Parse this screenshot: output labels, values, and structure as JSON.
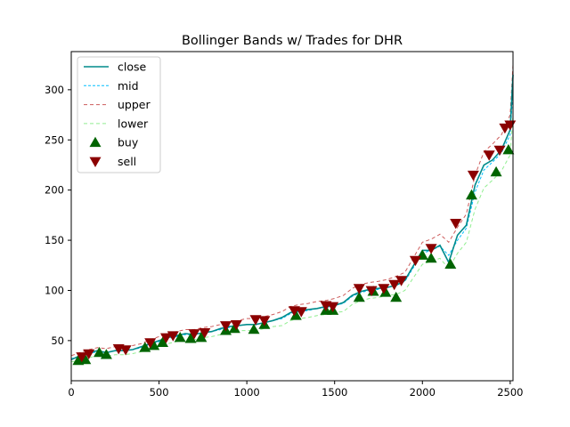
{
  "chart_data": {
    "type": "line",
    "title": "Bollinger Bands w/ Trades for DHR",
    "xlabel": "",
    "ylabel": "",
    "xlim": [
      0,
      2516
    ],
    "ylim": [
      10,
      338
    ],
    "xticks": [
      0,
      500,
      1000,
      1500,
      2000,
      2500
    ],
    "yticks": [
      50,
      100,
      150,
      200,
      250,
      300
    ],
    "grid": false,
    "legend_position": "top-left",
    "legend": [
      "close",
      "mid",
      "upper",
      "lower",
      "buy",
      "sell"
    ],
    "colors": {
      "close": "#008b8b",
      "mid": "#00bfff",
      "upper": "#cd5c5c",
      "lower": "#90ee90",
      "buy": "#006400",
      "sell": "#8b0000"
    },
    "series": [
      {
        "name": "close",
        "x": [
          0,
          50,
          100,
          150,
          200,
          250,
          300,
          350,
          400,
          450,
          500,
          550,
          600,
          650,
          700,
          750,
          800,
          850,
          900,
          950,
          1000,
          1050,
          1100,
          1150,
          1200,
          1250,
          1300,
          1350,
          1400,
          1450,
          1500,
          1550,
          1600,
          1650,
          1700,
          1750,
          1800,
          1850,
          1900,
          1950,
          2000,
          2050,
          2100,
          2150,
          2200,
          2250,
          2300,
          2350,
          2400,
          2450,
          2500,
          2516
        ],
        "values": [
          31,
          35,
          38,
          40,
          38,
          40,
          40,
          41,
          44,
          47,
          50,
          53,
          55,
          57,
          56,
          58,
          59,
          62,
          64,
          65,
          66,
          66,
          68,
          70,
          73,
          78,
          80,
          81,
          82,
          84,
          85,
          88,
          95,
          99,
          101,
          102,
          103,
          105,
          110,
          125,
          140,
          140,
          145,
          128,
          155,
          165,
          205,
          225,
          230,
          240,
          260,
          315
        ]
      },
      {
        "name": "mid",
        "x": [
          0,
          50,
          100,
          150,
          200,
          250,
          300,
          350,
          400,
          450,
          500,
          550,
          600,
          650,
          700,
          750,
          800,
          850,
          900,
          950,
          1000,
          1050,
          1100,
          1150,
          1200,
          1250,
          1300,
          1350,
          1400,
          1450,
          1500,
          1550,
          1600,
          1650,
          1700,
          1750,
          1800,
          1850,
          1900,
          1950,
          2000,
          2050,
          2100,
          2150,
          2200,
          2250,
          2300,
          2350,
          2400,
          2450,
          2500,
          2516
        ],
        "values": [
          32,
          34,
          37,
          39,
          38,
          40,
          40,
          41,
          43,
          46,
          49,
          52,
          54,
          56,
          56,
          58,
          59,
          61,
          63,
          65,
          66,
          66,
          68,
          70,
          72,
          77,
          79,
          80,
          82,
          83,
          85,
          87,
          94,
          98,
          100,
          101,
          103,
          105,
          109,
          123,
          137,
          140,
          144,
          135,
          150,
          162,
          198,
          220,
          228,
          237,
          255,
          300
        ]
      },
      {
        "name": "upper",
        "x": [
          0,
          50,
          100,
          150,
          200,
          250,
          300,
          350,
          400,
          450,
          500,
          550,
          600,
          650,
          700,
          750,
          800,
          850,
          900,
          950,
          1000,
          1050,
          1100,
          1150,
          1200,
          1250,
          1300,
          1350,
          1400,
          1450,
          1500,
          1550,
          1600,
          1650,
          1700,
          1750,
          1800,
          1850,
          1900,
          1950,
          2000,
          2050,
          2100,
          2150,
          2200,
          2250,
          2300,
          2350,
          2400,
          2450,
          2500,
          2516
        ],
        "values": [
          35,
          38,
          41,
          43,
          42,
          44,
          44,
          45,
          47,
          51,
          54,
          57,
          59,
          61,
          61,
          63,
          64,
          66,
          68,
          70,
          72,
          72,
          74,
          76,
          79,
          84,
          86,
          87,
          89,
          90,
          92,
          95,
          102,
          106,
          108,
          109,
          111,
          114,
          118,
          133,
          148,
          151,
          156,
          148,
          163,
          176,
          215,
          238,
          246,
          255,
          275,
          325
        ]
      },
      {
        "name": "lower",
        "x": [
          0,
          50,
          100,
          150,
          200,
          250,
          300,
          350,
          400,
          450,
          500,
          550,
          600,
          650,
          700,
          750,
          800,
          850,
          900,
          950,
          1000,
          1050,
          1100,
          1150,
          1200,
          1250,
          1300,
          1350,
          1400,
          1450,
          1500,
          1550,
          1600,
          1650,
          1700,
          1750,
          1800,
          1850,
          1900,
          1950,
          2000,
          2050,
          2100,
          2150,
          2200,
          2250,
          2300,
          2350,
          2400,
          2450,
          2500,
          2516
        ],
        "values": [
          29,
          30,
          33,
          35,
          34,
          36,
          36,
          37,
          39,
          41,
          44,
          47,
          49,
          51,
          51,
          53,
          54,
          56,
          58,
          60,
          60,
          60,
          62,
          64,
          65,
          70,
          72,
          73,
          75,
          76,
          78,
          79,
          86,
          90,
          92,
          93,
          95,
          96,
          100,
          113,
          126,
          129,
          132,
          122,
          137,
          148,
          181,
          202,
          210,
          219,
          235,
          275
        ]
      },
      {
        "name": "buy",
        "x": [
          40,
          80,
          160,
          200,
          420,
          470,
          520,
          620,
          680,
          740,
          880,
          930,
          1040,
          1100,
          1280,
          1450,
          1490,
          1640,
          1720,
          1790,
          1850,
          2000,
          2050,
          2160,
          2280,
          2420,
          2490
        ],
        "values": [
          30,
          31,
          38,
          36,
          43,
          45,
          48,
          53,
          52,
          53,
          60,
          62,
          61,
          66,
          75,
          80,
          80,
          93,
          99,
          98,
          93,
          135,
          132,
          126,
          195,
          218,
          240
        ]
      },
      {
        "name": "sell",
        "x": [
          60,
          100,
          270,
          310,
          450,
          540,
          580,
          700,
          760,
          880,
          940,
          1050,
          1100,
          1270,
          1310,
          1450,
          1490,
          1640,
          1710,
          1780,
          1840,
          1880,
          1960,
          2050,
          2190,
          2290,
          2380,
          2440,
          2470,
          2500
        ],
        "values": [
          34,
          37,
          42,
          41,
          48,
          53,
          55,
          57,
          58,
          65,
          66,
          71,
          70,
          80,
          79,
          85,
          84,
          102,
          100,
          102,
          106,
          110,
          130,
          142,
          167,
          215,
          235,
          240,
          262,
          265
        ]
      }
    ]
  }
}
